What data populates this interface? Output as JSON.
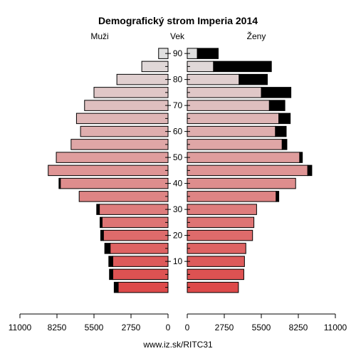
{
  "chart_data": {
    "type": "bar",
    "orientation": "horizontal",
    "layout": "population-pyramid",
    "title": "Demografický strom Imperia 2014",
    "left_label": "Muži",
    "center_label": "Vek",
    "right_label": "Ženy",
    "source": "www.iz.sk/RITC31",
    "age_ticks": [
      "10",
      "20",
      "30",
      "40",
      "50",
      "60",
      "70",
      "80",
      "90"
    ],
    "x_ticks_left": [
      "11000",
      "8250",
      "5500",
      "2750",
      "0"
    ],
    "x_ticks_right": [
      "0",
      "2750",
      "5500",
      "8250",
      "11000"
    ],
    "x_max": 11000,
    "legend": false,
    "age_groups": [
      "0-4",
      "5-9",
      "10-14",
      "15-19",
      "20-24",
      "25-29",
      "30-34",
      "35-39",
      "40-44",
      "45-49",
      "50-54",
      "55-59",
      "60-64",
      "65-69",
      "70-74",
      "75-79",
      "80-84",
      "85-89",
      "90+"
    ],
    "men_base": [
      3700,
      4100,
      4100,
      4300,
      4800,
      4900,
      5100,
      6600,
      8000,
      8900,
      8300,
      7200,
      6500,
      6800,
      6200,
      5500,
      3800,
      1950,
      700
    ],
    "men_excess": [
      300,
      250,
      300,
      400,
      200,
      150,
      200,
      0,
      100,
      0,
      0,
      0,
      0,
      0,
      0,
      0,
      0,
      0,
      0
    ],
    "women_base": [
      3800,
      4200,
      4250,
      4350,
      4850,
      4950,
      5150,
      6600,
      8050,
      8950,
      8350,
      7050,
      6550,
      6800,
      6100,
      5500,
      3850,
      1950,
      750
    ],
    "women_excess": [
      0,
      0,
      0,
      0,
      0,
      0,
      0,
      200,
      0,
      300,
      200,
      350,
      800,
      850,
      1150,
      2200,
      2100,
      4300,
      1550
    ],
    "colors": {
      "young_fill": "#dd4a4a",
      "old_fill": "#e0e0e0",
      "excess_fill": "#000000",
      "outline": "#000000"
    }
  }
}
